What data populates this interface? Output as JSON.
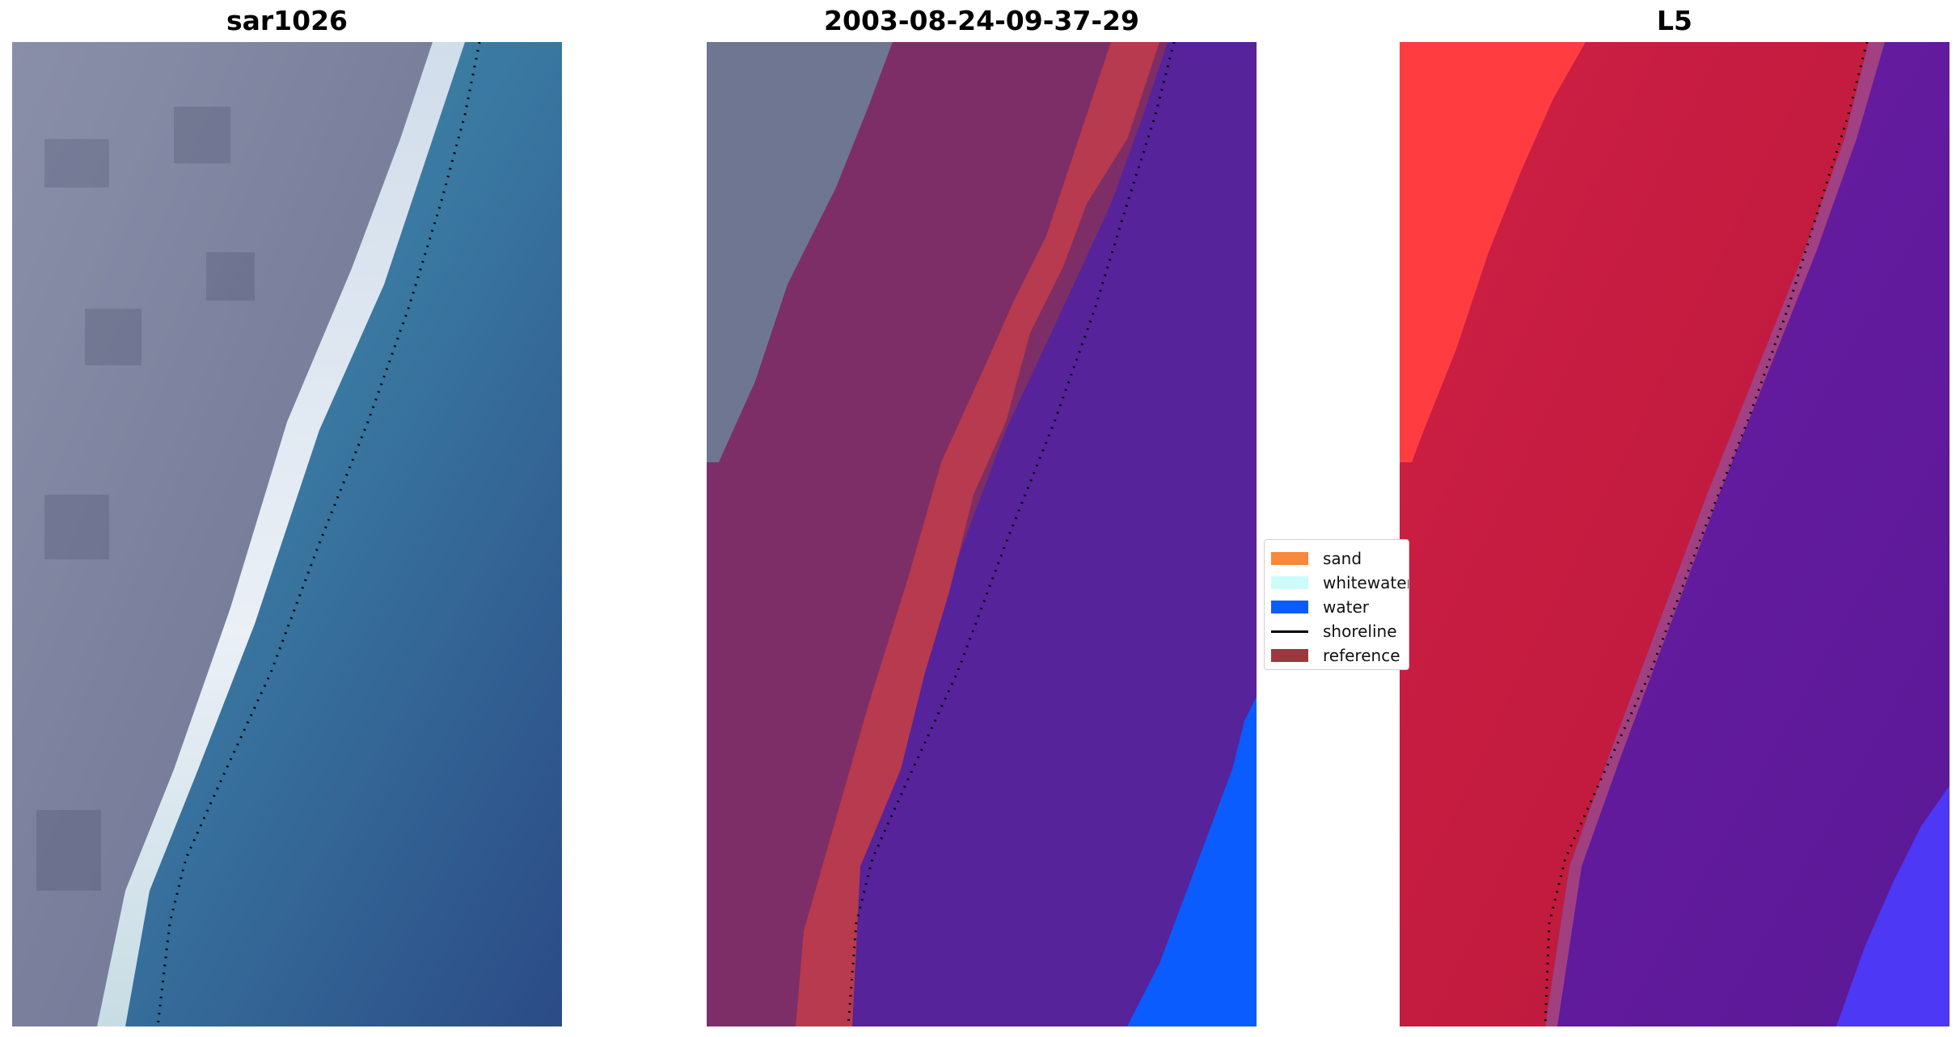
{
  "panels": [
    {
      "title": "sar1026"
    },
    {
      "title": "2003-08-24-09-37-29"
    },
    {
      "title": "L5"
    }
  ],
  "legend": {
    "items": [
      {
        "label": "sand",
        "color": "#f58a3c",
        "kind": "patch"
      },
      {
        "label": "whitewater",
        "color": "#ccfcfa",
        "kind": "patch"
      },
      {
        "label": "water",
        "color": "#0a5cff",
        "kind": "patch"
      },
      {
        "label": "shoreline",
        "color": "#000000",
        "kind": "line"
      },
      {
        "label": "reference",
        "color": "#9b3a3e",
        "kind": "patch"
      }
    ]
  },
  "colors": {
    "land_gray": "#7f84a0",
    "ocean_teal": "#3b7fa3",
    "ocean_deep": "#2b4b86",
    "surf_white": "#e8eef4",
    "land_overlay": "#7e2e66",
    "reference_band": "#b83a4e",
    "water_purple": "#56239a",
    "water_blue": "#0a5cff",
    "l5_red": "#c51a3e",
    "l5_bright_red": "#ff3a3a",
    "l5_purple": "#6a1aa0",
    "l5_blue": "#4a3cff"
  }
}
